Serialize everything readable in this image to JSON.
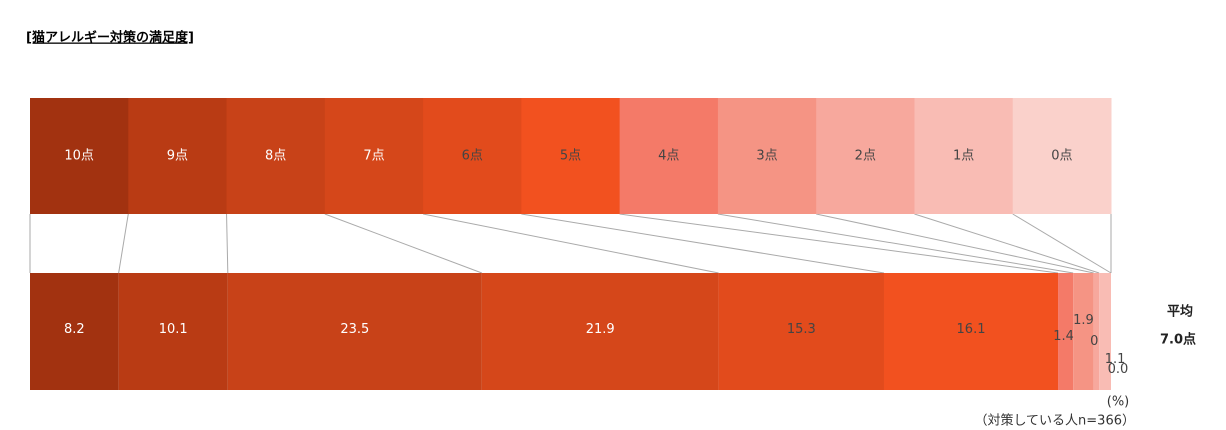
{
  "chart_data": {
    "type": "stacked-bar-100",
    "title": "[猫アレルギー対策の満足度]",
    "categories": [
      "10点",
      "9点",
      "8点",
      "7点",
      "6点",
      "5点",
      "4点",
      "3点",
      "2点",
      "1点",
      "0点"
    ],
    "values": [
      8.2,
      10.1,
      23.5,
      21.9,
      15.3,
      16.1,
      1.4,
      1.9,
      0.5,
      1.1,
      0.0
    ],
    "value_labels": [
      "8.2",
      "10.1",
      "23.5",
      "21.9",
      "15.3",
      "16.1",
      "1.4",
      "1.9",
      "0.5",
      "1.1",
      "0.0"
    ],
    "colors": [
      "#a23210",
      "#b93b14",
      "#c84218",
      "#d5471a",
      "#e24b1c",
      "#f2511f",
      "#f47a68",
      "#f59484",
      "#f7a89d",
      "#f9bcb4",
      "#fad1cb"
    ],
    "unit_note": "(%)",
    "base_note": "（対策している人n=366）",
    "average_label": "平均",
    "average": "7.0点"
  }
}
